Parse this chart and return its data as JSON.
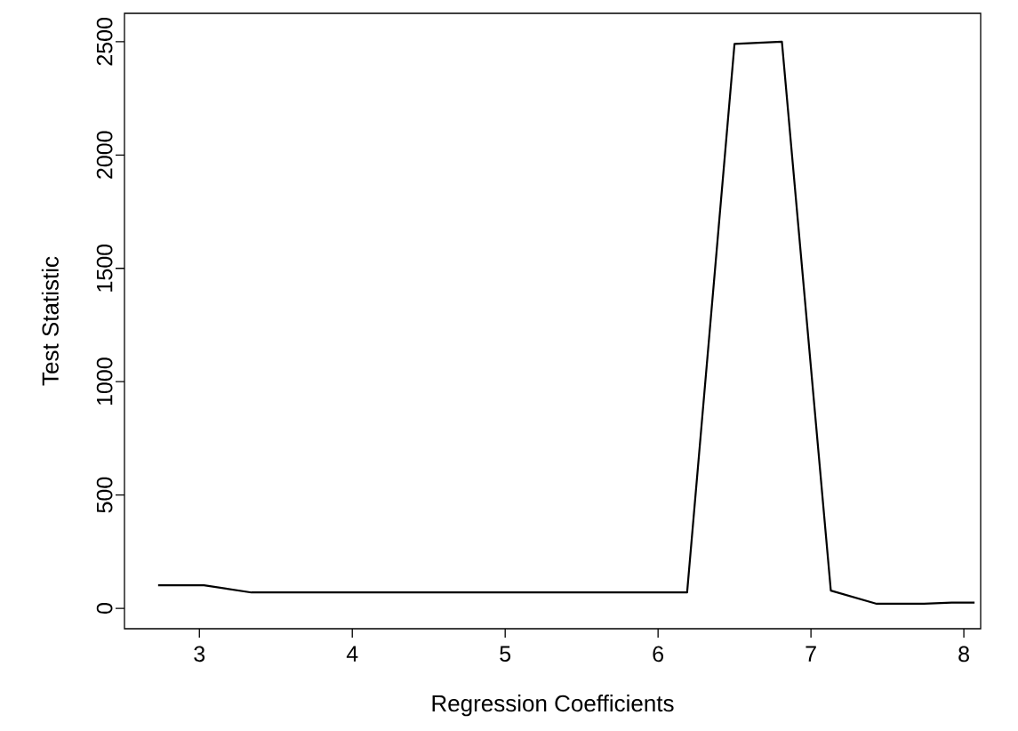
{
  "chart_data": {
    "type": "line",
    "xlabel": "Regression Coefficients",
    "ylabel": "Test Statistic",
    "x": [
      2.73,
      3.03,
      3.34,
      6.19,
      6.5,
      6.81,
      7.13,
      7.43,
      7.74,
      7.92,
      8.07
    ],
    "series": [
      {
        "color": "#000000",
        "values": [
          102,
          102,
          70,
          70,
          2490,
          2500,
          78,
          20,
          20,
          25,
          25
        ]
      }
    ],
    "xlim": [
      2.51,
      8.11
    ],
    "ylim": [
      -90,
      2625
    ],
    "xticks": [
      3,
      4,
      5,
      6,
      7,
      8
    ],
    "yticks": [
      0,
      500,
      1000,
      1500,
      2000,
      2500
    ],
    "grid": false,
    "marker": "none",
    "line_style": "solid"
  }
}
